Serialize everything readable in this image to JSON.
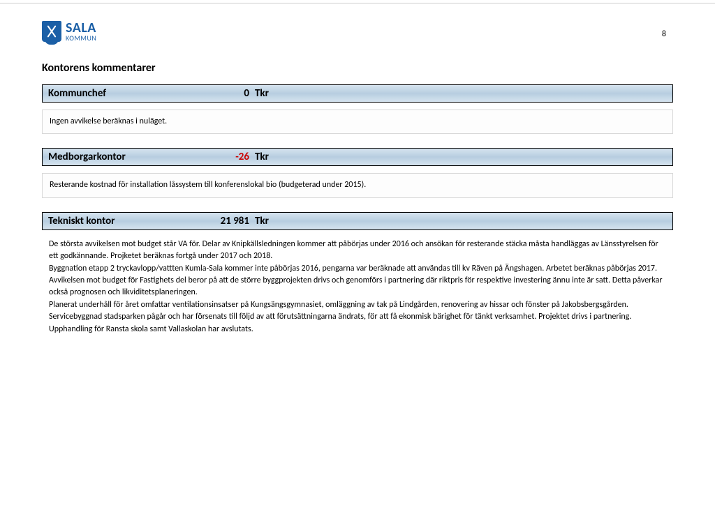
{
  "page_number": "8",
  "logo": {
    "name": "SALA",
    "sub": "KOMMUN",
    "brand_color": "#1b5fa6"
  },
  "title": "Kontorens kommentarer",
  "offices": [
    {
      "name": "Kommunchef",
      "value": "0",
      "unit": "Tkr",
      "negative": false,
      "comment": "Ingen avvikelse beräknas i nuläget.",
      "boxed": true
    },
    {
      "name": "Medborgarkontor",
      "value": "-26",
      "unit": "Tkr",
      "negative": true,
      "comment": "Resterande kostnad för installation låssystem till konferenslokal bio (budgeterad under 2015).",
      "boxed": true
    },
    {
      "name": "Tekniskt kontor",
      "value": "21 981",
      "unit": "Tkr",
      "negative": false,
      "comment": "De största avvikelsen mot budget står VA för. Delar av Knipkällsledningen kommer att påbörjas under 2016 och ansökan för resterande stäcka måsta handläggas av Länsstyrelsen för ett godkännande. Projketet beräknas fortgå under 2017 och 2018.\nByggnation etapp 2 tryckavlopp/vattten Kumla-Sala kommer inte påbörjas 2016, pengarna var beräknade att användas till kv Räven på Ängshagen. Arbetet beräknas påbörjas 2017.\nAvvikelsen mot budget för Fastighets del beror på att de större byggprojekten drivs och genomförs i partnering där riktpris för respektive investering ännu inte är satt. Detta påverkar också prognosen och likviditetsplaneringen.\nPlanerat underhåll för året omfattar ventilationsinsatser på Kungsängsgymnasiet, omläggning av tak på Lindgården, renovering av hissar och fönster på Jakobsbergsgården. Servicebyggnad stadsparken pågår och har försenats till följd av att förutsättningarna ändrats, för att få ekonmisk bärighet för tänkt verksamhet. Projektet drivs i partnering. Upphandling för Ransta skola samt Vallaskolan har avslutats.",
      "boxed": false
    }
  ],
  "colors": {
    "header_bg_top": "#d6e4ef",
    "header_bg_mid": "#b7cde0",
    "header_border": "#000000",
    "negative": "#cc0000",
    "text": "#000000",
    "box_border": "#d8d8d8"
  }
}
